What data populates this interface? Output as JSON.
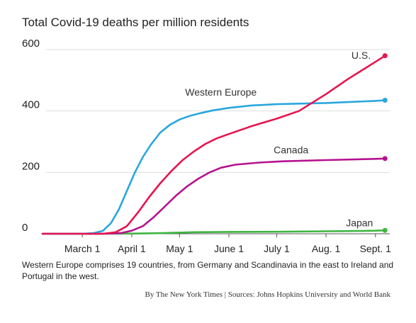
{
  "chart_data": {
    "type": "line",
    "title": "Total Covid-19 deaths per million residents",
    "xlabel": "",
    "ylabel": "",
    "ylim": [
      0,
      600
    ],
    "xlim": [
      "2020-02-05",
      "2020-09-10"
    ],
    "yticks": [
      "0",
      "200",
      "400",
      "600"
    ],
    "xticks": [
      {
        "date": "2020-03-01",
        "label": "March 1"
      },
      {
        "date": "2020-04-01",
        "label": "April 1"
      },
      {
        "date": "2020-05-01",
        "label": "May 1"
      },
      {
        "date": "2020-06-01",
        "label": "June 1"
      },
      {
        "date": "2020-07-01",
        "label": "July 1"
      },
      {
        "date": "2020-08-01",
        "label": "Aug. 1"
      },
      {
        "date": "2020-09-01",
        "label": "Sept. 1"
      }
    ],
    "grid": true,
    "series": [
      {
        "name": "Western Europe",
        "color": "#2aa7dd",
        "points": [
          [
            "2020-03-01",
            0
          ],
          [
            "2020-03-08",
            2
          ],
          [
            "2020-03-14",
            10
          ],
          [
            "2020-03-19",
            35
          ],
          [
            "2020-03-24",
            80
          ],
          [
            "2020-03-29",
            140
          ],
          [
            "2020-04-03",
            200
          ],
          [
            "2020-04-08",
            250
          ],
          [
            "2020-04-13",
            290
          ],
          [
            "2020-04-19",
            330
          ],
          [
            "2020-04-25",
            355
          ],
          [
            "2020-05-01",
            372
          ],
          [
            "2020-05-08",
            385
          ],
          [
            "2020-05-15",
            394
          ],
          [
            "2020-05-22",
            402
          ],
          [
            "2020-06-01",
            410
          ],
          [
            "2020-06-15",
            418
          ],
          [
            "2020-07-01",
            422
          ],
          [
            "2020-07-15",
            424
          ],
          [
            "2020-08-01",
            426
          ],
          [
            "2020-08-15",
            429
          ],
          [
            "2020-09-01",
            433
          ],
          [
            "2020-09-07",
            435
          ]
        ]
      },
      {
        "name": "U.S.",
        "color": "#e8144f",
        "points": [
          [
            "2020-03-14",
            0
          ],
          [
            "2020-03-22",
            5
          ],
          [
            "2020-03-29",
            25
          ],
          [
            "2020-04-05",
            70
          ],
          [
            "2020-04-12",
            120
          ],
          [
            "2020-04-19",
            165
          ],
          [
            "2020-04-26",
            205
          ],
          [
            "2020-05-03",
            240
          ],
          [
            "2020-05-10",
            268
          ],
          [
            "2020-05-17",
            292
          ],
          [
            "2020-05-24",
            310
          ],
          [
            "2020-06-01",
            325
          ],
          [
            "2020-06-15",
            350
          ],
          [
            "2020-07-01",
            375
          ],
          [
            "2020-07-15",
            400
          ],
          [
            "2020-08-01",
            455
          ],
          [
            "2020-08-15",
            505
          ],
          [
            "2020-09-01",
            560
          ],
          [
            "2020-09-07",
            580
          ]
        ]
      },
      {
        "name": "Canada",
        "color": "#b5128f",
        "points": [
          [
            "2020-03-14",
            0
          ],
          [
            "2020-03-25",
            2
          ],
          [
            "2020-04-01",
            10
          ],
          [
            "2020-04-08",
            25
          ],
          [
            "2020-04-15",
            55
          ],
          [
            "2020-04-22",
            90
          ],
          [
            "2020-04-29",
            125
          ],
          [
            "2020-05-06",
            155
          ],
          [
            "2020-05-13",
            180
          ],
          [
            "2020-05-20",
            200
          ],
          [
            "2020-05-27",
            215
          ],
          [
            "2020-06-05",
            225
          ],
          [
            "2020-06-20",
            232
          ],
          [
            "2020-07-05",
            236
          ],
          [
            "2020-08-01",
            240
          ],
          [
            "2020-09-01",
            244
          ],
          [
            "2020-09-07",
            245
          ]
        ]
      },
      {
        "name": "Japan",
        "color": "#3fb541",
        "points": [
          [
            "2020-03-01",
            0
          ],
          [
            "2020-04-01",
            0.5
          ],
          [
            "2020-04-20",
            2
          ],
          [
            "2020-05-10",
            5
          ],
          [
            "2020-06-01",
            6
          ],
          [
            "2020-07-01",
            6.5
          ],
          [
            "2020-08-01",
            8
          ],
          [
            "2020-08-20",
            9
          ],
          [
            "2020-09-01",
            10
          ],
          [
            "2020-09-07",
            11
          ]
        ]
      }
    ],
    "annotations": {
      "note": "Western Europe comprises 19 countries, from Germany and Scandinavia in the east to Ireland and Portugal in the west.",
      "credit": "By The New York Times | Sources: Johns Hopkins University and World Bank"
    }
  }
}
